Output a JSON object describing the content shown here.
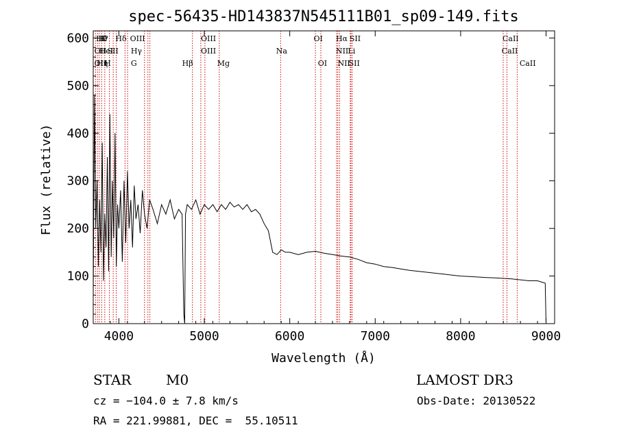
{
  "chart_data": {
    "type": "line",
    "title": "spec-56435-HD143837N545111B01_sp09-149.fits",
    "xlabel": "Wavelength (Å)",
    "ylabel": "Flux (relative)",
    "xlim": [
      3700,
      9100
    ],
    "ylim": [
      0,
      615
    ],
    "xticks": [
      4000,
      5000,
      6000,
      7000,
      8000,
      9000
    ],
    "yticks": [
      0,
      100,
      200,
      300,
      400,
      500,
      600
    ],
    "grid": false,
    "line_color": "#000000",
    "marker_color": "#cc0000",
    "series": [
      {
        "x": [
          3700,
          3715,
          3730,
          3745,
          3760,
          3775,
          3790,
          3805,
          3820,
          3835,
          3850,
          3865,
          3880,
          3895,
          3910,
          3925,
          3940,
          3955,
          3970,
          3985,
          4000,
          4020,
          4040,
          4060,
          4080,
          4100,
          4120,
          4140,
          4160,
          4180,
          4200,
          4225,
          4250,
          4275,
          4300,
          4330,
          4360,
          4400,
          4450,
          4500,
          4550,
          4600,
          4650,
          4700,
          4740,
          4760,
          4770,
          4780,
          4800,
          4850,
          4900,
          4950,
          5000,
          5050,
          5100,
          5150,
          5200,
          5250,
          5300,
          5350,
          5400,
          5450,
          5500,
          5550,
          5600,
          5650,
          5700,
          5750,
          5800,
          5850,
          5900,
          5950,
          6000,
          6100,
          6200,
          6300,
          6400,
          6500,
          6600,
          6700,
          6800,
          6900,
          7000,
          7100,
          7200,
          7300,
          7400,
          7500,
          7600,
          7700,
          7800,
          7900,
          8000,
          8100,
          8200,
          8300,
          8400,
          8500,
          8600,
          8700,
          8800,
          8900,
          8990,
          9000
        ],
        "y": [
          60,
          480,
          200,
          300,
          120,
          260,
          150,
          380,
          90,
          230,
          160,
          350,
          110,
          440,
          140,
          300,
          180,
          400,
          120,
          250,
          200,
          280,
          130,
          300,
          170,
          320,
          200,
          260,
          160,
          290,
          220,
          250,
          190,
          280,
          230,
          200,
          260,
          240,
          210,
          250,
          230,
          260,
          220,
          240,
          230,
          20,
          0,
          230,
          250,
          240,
          260,
          230,
          250,
          240,
          250,
          235,
          250,
          240,
          255,
          245,
          250,
          240,
          250,
          235,
          240,
          230,
          210,
          195,
          150,
          145,
          155,
          150,
          150,
          145,
          150,
          152,
          148,
          145,
          142,
          140,
          135,
          128,
          125,
          120,
          118,
          115,
          112,
          110,
          108,
          106,
          104,
          102,
          100,
          99,
          98,
          97,
          96,
          95,
          94,
          92,
          90,
          90,
          85,
          0
        ]
      }
    ],
    "lines": [
      {
        "x": 3727,
        "label": "OII"
      },
      {
        "x": 3750,
        "label": "Hθ"
      },
      {
        "x": 3771,
        "label": "H⁹"
      },
      {
        "x": 3798,
        "label": "Hη"
      },
      {
        "x": 3835,
        "label": "Hη"
      },
      {
        "x": 3889,
        "label": "HeI"
      },
      {
        "x": 3934,
        "label": "K"
      },
      {
        "x": 3969,
        "label": "H"
      },
      {
        "x": 4072,
        "label": "SII"
      },
      {
        "x": 4102,
        "label": "Hδ"
      },
      {
        "x": 4300,
        "label": "G"
      },
      {
        "x": 4340,
        "label": "Hγ"
      },
      {
        "x": 4363,
        "label": "OIII"
      },
      {
        "x": 4861,
        "label": "Hβ"
      },
      {
        "x": 4959,
        "label": "OIII"
      },
      {
        "x": 5007,
        "label": "OIII"
      },
      {
        "x": 5175,
        "label": "Mg"
      },
      {
        "x": 5893,
        "label": "Na"
      },
      {
        "x": 6300,
        "label": "OI"
      },
      {
        "x": 6364,
        "label": "OI"
      },
      {
        "x": 6548,
        "label": "NII"
      },
      {
        "x": 6563,
        "label": "Hα"
      },
      {
        "x": 6583,
        "label": "NII"
      },
      {
        "x": 6708,
        "label": "Li"
      },
      {
        "x": 6716,
        "label": "SII"
      },
      {
        "x": 6731,
        "label": "SII"
      },
      {
        "x": 8498,
        "label": "CaII"
      },
      {
        "x": 8542,
        "label": "CaII"
      },
      {
        "x": 8662,
        "label": "CaII"
      }
    ],
    "line_label_rows": [
      [
        {
          "x": 3733,
          "text": "Hθ"
        },
        {
          "x": 3760,
          "text": "H⁹"
        },
        {
          "x": 3790,
          "text": "K"
        },
        {
          "x": 3960,
          "text": "Hδ"
        },
        {
          "x": 4130,
          "text": "OIII"
        },
        {
          "x": 4960,
          "text": "OIII"
        },
        {
          "x": 6280,
          "text": "OI"
        },
        {
          "x": 6540,
          "text": "Hα"
        },
        {
          "x": 6700,
          "text": "SII"
        },
        {
          "x": 8490,
          "text": "CaII"
        }
      ],
      [
        {
          "x": 3713,
          "text": "OII"
        },
        {
          "x": 3770,
          "text": "HeI"
        },
        {
          "x": 3865,
          "text": "SII"
        },
        {
          "x": 4140,
          "text": "Hγ"
        },
        {
          "x": 4960,
          "text": "OIII"
        },
        {
          "x": 6540,
          "text": "NII"
        },
        {
          "x": 6680,
          "text": "Li"
        },
        {
          "x": 5840,
          "text": "Na"
        },
        {
          "x": 8480,
          "text": "CaII"
        }
      ],
      [
        {
          "x": 3713,
          "text": "OII"
        },
        {
          "x": 3740,
          "text": "Hη"
        },
        {
          "x": 3830,
          "text": "H"
        },
        {
          "x": 4140,
          "text": "G"
        },
        {
          "x": 4740,
          "text": "Hβ"
        },
        {
          "x": 5150,
          "text": "Mg"
        },
        {
          "x": 6330,
          "text": "OI"
        },
        {
          "x": 6560,
          "text": "NII"
        },
        {
          "x": 6690,
          "text": "SII"
        },
        {
          "x": 8690,
          "text": "CaII"
        }
      ]
    ]
  },
  "info": {
    "class_label": "STAR",
    "subclass_label": "M0",
    "cz_text": "cz = −104.0 ± 7.8 km/s",
    "coords_text": "RA = 221.99881, DEC =  55.10511",
    "survey_label": "LAMOST DR3",
    "obs_date_text": "Obs-Date: 20130522"
  }
}
